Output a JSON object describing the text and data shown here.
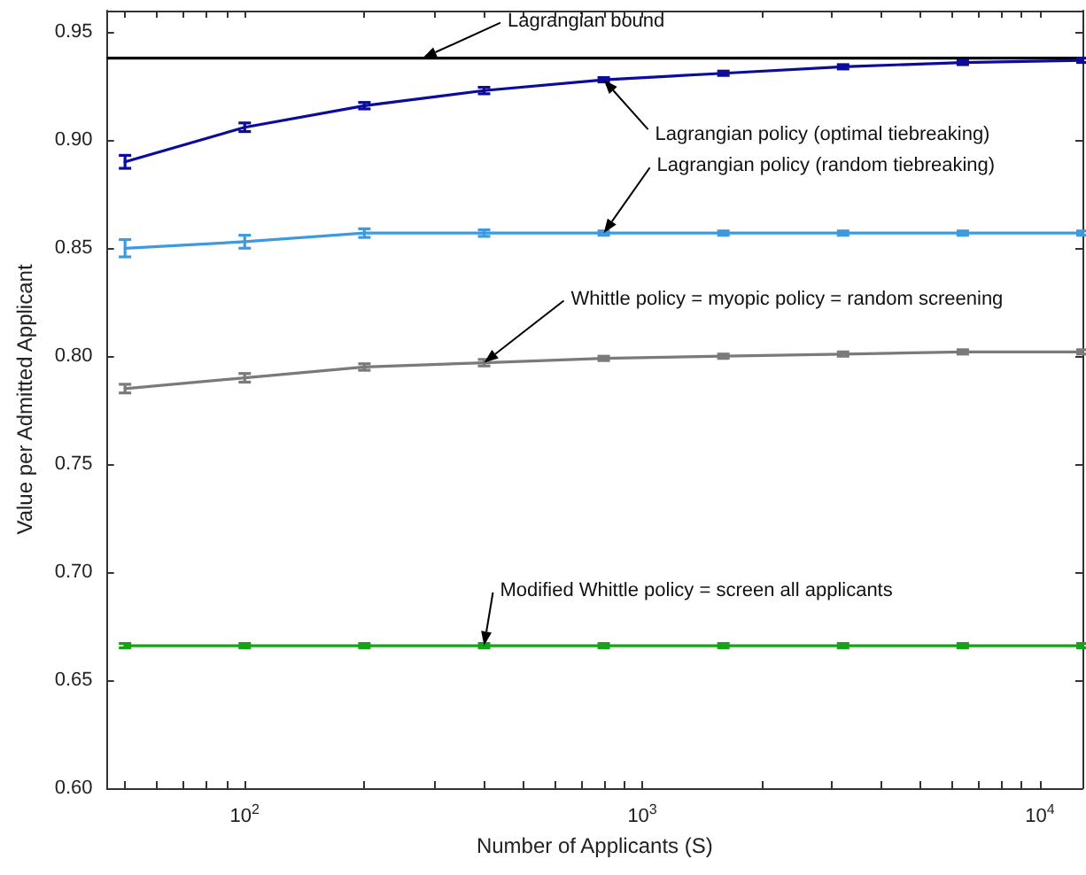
{
  "chart_data": {
    "type": "line",
    "xlabel": "Number of Applicants (S)",
    "ylabel": "Value per Admitted Applicant",
    "log": "x",
    "grid": false,
    "marker": "none",
    "line_style": "solid",
    "xlim": [
      45,
      12800
    ],
    "ylim": [
      0.6,
      0.96
    ],
    "xticks": [
      {
        "value": 50,
        "label": null
      },
      {
        "value": 60,
        "label": null
      },
      {
        "value": 70,
        "label": null
      },
      {
        "value": 80,
        "label": null
      },
      {
        "value": 90,
        "label": null
      },
      {
        "value": 100,
        "label": "10$^{2}$"
      },
      {
        "value": 200,
        "label": null
      },
      {
        "value": 300,
        "label": null
      },
      {
        "value": 400,
        "label": null
      },
      {
        "value": 500,
        "label": null
      },
      {
        "value": 600,
        "label": null
      },
      {
        "value": 700,
        "label": null
      },
      {
        "value": 800,
        "label": null
      },
      {
        "value": 900,
        "label": null
      },
      {
        "value": 1000,
        "label": "10$^{3}$"
      },
      {
        "value": 2000,
        "label": null
      },
      {
        "value": 3000,
        "label": null
      },
      {
        "value": 4000,
        "label": null
      },
      {
        "value": 5000,
        "label": null
      },
      {
        "value": 6000,
        "label": null
      },
      {
        "value": 7000,
        "label": null
      },
      {
        "value": 8000,
        "label": null
      },
      {
        "value": 9000,
        "label": null
      },
      {
        "value": 10000,
        "label": "10$^{4}$"
      }
    ],
    "yticks": [
      {
        "value": 0.6,
        "label": "0.60"
      },
      {
        "value": 0.65,
        "label": "0.65"
      },
      {
        "value": 0.7,
        "label": "0.70"
      },
      {
        "value": 0.75,
        "label": "0.75"
      },
      {
        "value": 0.8,
        "label": "0.80"
      },
      {
        "value": 0.85,
        "label": "0.85"
      },
      {
        "value": 0.9,
        "label": "0.90"
      },
      {
        "value": 0.95,
        "label": "0.95"
      }
    ],
    "x": [
      50,
      100,
      200,
      400,
      800,
      1600,
      3200,
      6400,
      12800
    ],
    "series": [
      {
        "color": "#0c0c9c",
        "values": [
          0.89,
          0.906,
          0.916,
          0.923,
          0.928,
          0.931,
          0.934,
          0.936,
          0.937
        ],
        "errors": [
          0.003,
          0.002,
          0.0015,
          0.0015,
          0.001,
          0.001,
          0.001,
          0.001,
          0.001
        ]
      },
      {
        "color": "#3d9ae0",
        "values": [
          0.85,
          0.853,
          0.857,
          0.857,
          0.857,
          0.857,
          0.857,
          0.857,
          0.857
        ],
        "errors": [
          0.004,
          0.003,
          0.002,
          0.0015,
          0.001,
          0.001,
          0.001,
          0.001,
          0.001
        ]
      },
      {
        "color": "#7a7a7a",
        "values": [
          0.785,
          0.79,
          0.795,
          0.797,
          0.799,
          0.8,
          0.801,
          0.802,
          0.802
        ],
        "errors": [
          0.002,
          0.002,
          0.0015,
          0.0015,
          0.001,
          0.001,
          0.001,
          0.001,
          0.001
        ]
      },
      {
        "color": "#17a317",
        "values": [
          0.666,
          0.666,
          0.666,
          0.666,
          0.666,
          0.666,
          0.666,
          0.666,
          0.666
        ],
        "errors": [
          0.001,
          0.001,
          0.001,
          0.001,
          0.001,
          0.001,
          0.001,
          0.001,
          0.001
        ]
      }
    ],
    "ref_lines": [
      {
        "axis": "y",
        "value": 0.938,
        "color": "#000000",
        "line_style": "solid"
      }
    ],
    "annotations": [
      {
        "text": "Lagrangian bound",
        "x": 280,
        "y": 0.938
      },
      {
        "text": "Lagrangian policy (optimal tiebreaking)",
        "x": 800,
        "y": 0.928
      },
      {
        "text": "Lagrangian policy (random tiebreaking)",
        "x": 800,
        "y": 0.857
      },
      {
        "text": "Whittle policy = myopic policy = random screening",
        "x": 400,
        "y": 0.797
      },
      {
        "text": "Modified Whittle policy = screen all applicants",
        "x": 400,
        "y": 0.666
      }
    ]
  }
}
